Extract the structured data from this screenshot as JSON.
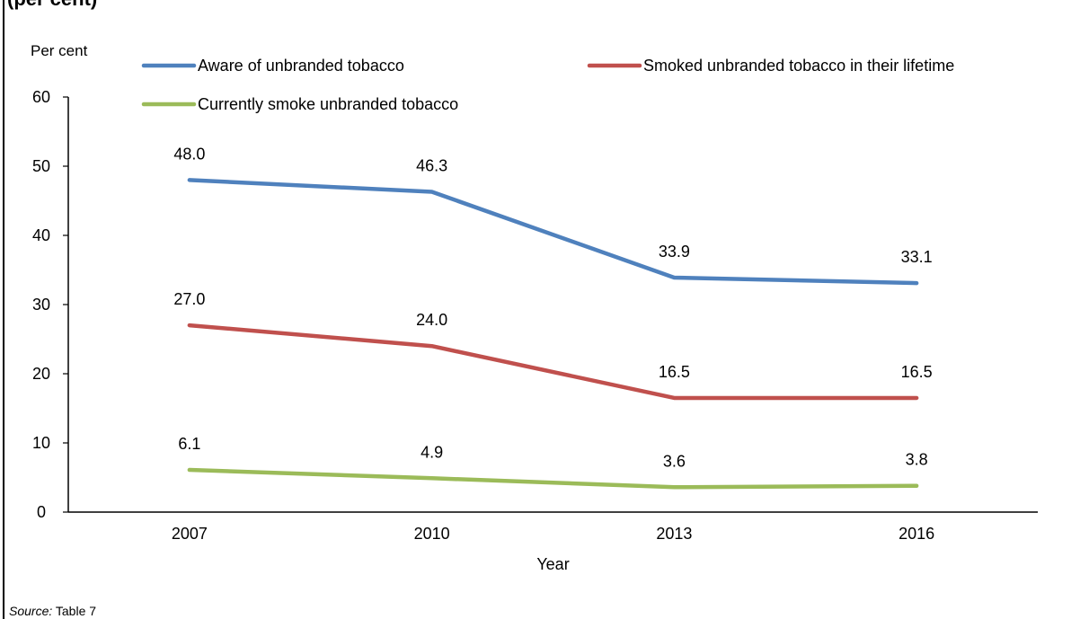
{
  "header": {
    "title_fragment": "(per cent)"
  },
  "source": {
    "label": "Source:",
    "text": "Table 7"
  },
  "chart_data": {
    "type": "line",
    "categories": [
      "2007",
      "2010",
      "2013",
      "2016"
    ],
    "ylabel": "Per cent",
    "xlabel": "Year",
    "ylim": [
      0,
      60
    ],
    "yticks": [
      "0",
      "10",
      "20",
      "30",
      "40",
      "50",
      "60"
    ],
    "grid": false,
    "legend_position": "top",
    "series": [
      {
        "name": "Aware of unbranded tobacco",
        "color": "#4f81bd",
        "values": [
          48.0,
          46.3,
          33.9,
          33.1
        ],
        "labels": [
          "48.0",
          "46.3",
          "33.9",
          "33.1"
        ]
      },
      {
        "name": "Smoked unbranded tobacco in their lifetime",
        "color": "#c0504d",
        "values": [
          27.0,
          24.0,
          16.5,
          16.5
        ],
        "labels": [
          "27.0",
          "24.0",
          "16.5",
          "16.5"
        ]
      },
      {
        "name": "Currently smoke unbranded tobacco",
        "color": "#9bbb59",
        "values": [
          6.1,
          4.9,
          3.6,
          3.8
        ],
        "labels": [
          "6.1",
          "4.9",
          "3.6",
          "3.8"
        ]
      }
    ]
  }
}
